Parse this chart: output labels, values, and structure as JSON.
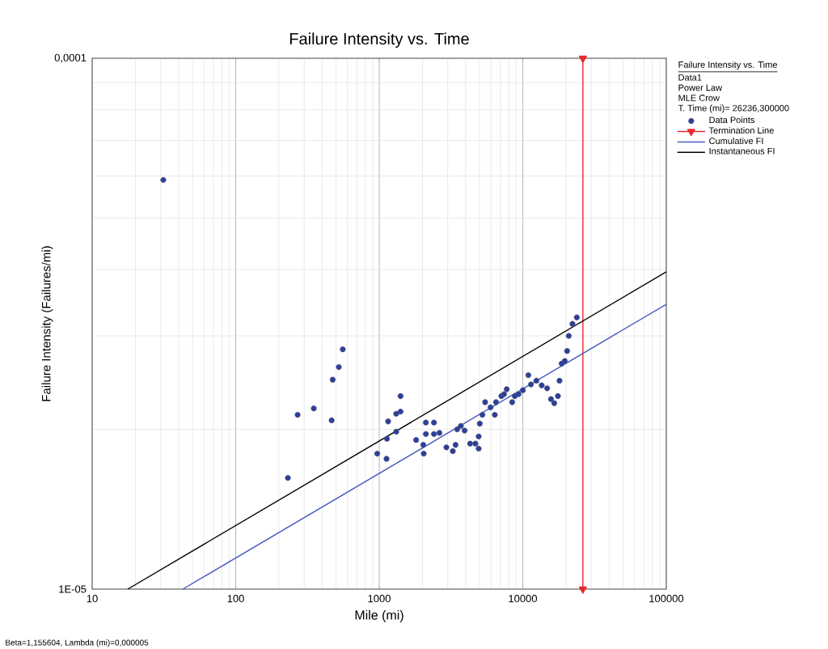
{
  "chart_data": {
    "type": "scatter",
    "title": "Failure Intensity vs. Time",
    "xlabel": "Mile (mi)",
    "ylabel": "Failure Intensity (Failures/mi)",
    "legend_title": "Failure Intensity vs. Time",
    "annotations": [
      "Data1",
      "Power Law",
      "MLE Crow",
      "T. Time (mi)= 26236,300000",
      "Beta=1,155604, Lambda (mi)=0,000005"
    ],
    "log": "xy",
    "grid": true,
    "legend": "right",
    "marker": "circle",
    "xlim": [
      10,
      100000
    ],
    "ylim": [
      1e-05,
      0.0001
    ],
    "xticks": [
      10,
      100,
      1000,
      10000,
      100000
    ],
    "yticks": [
      {
        "value": 1e-05,
        "label": "1E-05"
      },
      {
        "value": 0.0001,
        "label": "0,0001"
      }
    ],
    "series": [
      {
        "name": "Data Points",
        "color": "#2e3f9a",
        "x": [
          31.3,
          231,
          270,
          350,
          466,
          474,
          523,
          557,
          968,
          1124,
          1132,
          1153,
          1313,
          1313,
          1408,
          1408,
          1807,
          2028,
          2042,
          2113,
          2113,
          2405,
          2405,
          2626,
          2937,
          3256,
          3403,
          3493,
          3706,
          3936,
          4298,
          4680,
          4930,
          4930,
          5020,
          5235,
          5470,
          5960,
          6390,
          6510,
          7100,
          7410,
          7730,
          8440,
          8800,
          9360,
          10020,
          10940,
          11400,
          12450,
          13560,
          14780,
          15730,
          16570,
          17580,
          18030,
          18660,
          19640,
          20370,
          20920,
          22200,
          23800
        ],
        "values": [
          5.9e-05,
          1.62e-05,
          2.13e-05,
          2.19e-05,
          2.08e-05,
          2.48e-05,
          2.62e-05,
          2.83e-05,
          1.8e-05,
          1.76e-05,
          1.92e-05,
          2.07e-05,
          1.98e-05,
          2.14e-05,
          2.16e-05,
          2.31e-05,
          1.91e-05,
          1.87e-05,
          1.8e-05,
          2.06e-05,
          1.96e-05,
          2.06e-05,
          1.96e-05,
          1.97e-05,
          1.85e-05,
          1.82e-05,
          1.87e-05,
          2e-05,
          2.03e-05,
          1.99e-05,
          1.88e-05,
          1.88e-05,
          1.84e-05,
          1.94e-05,
          2.05e-05,
          2.13e-05,
          2.25e-05,
          2.2e-05,
          2.13e-05,
          2.25e-05,
          2.31e-05,
          2.33e-05,
          2.38e-05,
          2.25e-05,
          2.31e-05,
          2.33e-05,
          2.37e-05,
          2.53e-05,
          2.43e-05,
          2.47e-05,
          2.42e-05,
          2.39e-05,
          2.28e-05,
          2.24e-05,
          2.31e-05,
          2.47e-05,
          2.66e-05,
          2.69e-05,
          2.81e-05,
          3e-05,
          3.16e-05,
          3.25e-05
        ]
      },
      {
        "name": "Termination Line",
        "type": "line",
        "color": "#e8282c",
        "marker": "triangle",
        "x": [
          26236.3,
          26236.3
        ],
        "values": [
          0.0001,
          1e-05
        ]
      },
      {
        "name": "Cumulative FI",
        "type": "line",
        "color": "#4a5bbf",
        "marker": "none",
        "x": [
          42.8,
          100000
        ],
        "values": [
          1e-05,
          3.44e-05
        ]
      },
      {
        "name": "Instantaneous FI",
        "type": "line",
        "color": "#000000",
        "marker": "none",
        "x": [
          17.7,
          100000
        ],
        "values": [
          1e-05,
          3.96e-05
        ]
      }
    ]
  }
}
